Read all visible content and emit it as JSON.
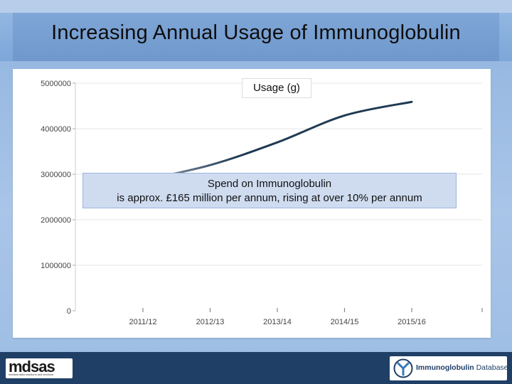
{
  "slide": {
    "title": "Increasing Annual Usage of Immunoglobulin",
    "callout_line1": "Spend on Immunoglobulin",
    "callout_line2": "is approx. £165 million per annum, rising at over 10% per annum"
  },
  "footer": {
    "left_logo_text": "mdsas",
    "left_logo_tagline": "medical data solutions and services",
    "right_logo_text_bold": "Immunoglobulin",
    "right_logo_text_light": "Database"
  },
  "chart_data": {
    "type": "line",
    "title": "Usage (g)",
    "xlabel": "",
    "ylabel": "",
    "categories": [
      "2011/12",
      "2012/13",
      "2013/14",
      "2014/15",
      "2015/16"
    ],
    "series": [
      {
        "values": [
          2870000,
          3200000,
          3700000,
          4290000,
          4590000
        ]
      }
    ],
    "yticks": [
      0,
      1000000,
      2000000,
      3000000,
      4000000,
      5000000
    ],
    "ytick_labels": [
      "0",
      "1000000",
      "2000000",
      "3000000",
      "4000000",
      "5000000"
    ],
    "ylim": [
      0,
      5000000
    ],
    "grid": true,
    "colors": {
      "line_start": "#9aa9b9",
      "line_end": "#1f3a52",
      "grid": "#e4e4e4"
    }
  }
}
